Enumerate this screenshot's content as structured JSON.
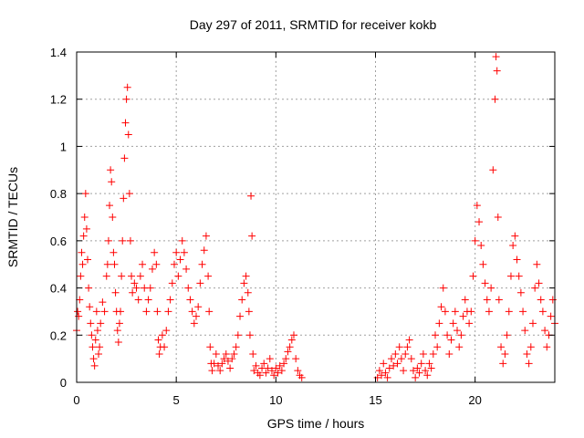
{
  "chart_data": {
    "type": "scatter",
    "title": "Day 297 of 2011, SRMTID for receiver kokb",
    "xlabel": "GPS time / hours",
    "ylabel": "SRMTID / TECUs",
    "xlim": [
      0,
      24
    ],
    "ylim": [
      0,
      1.4
    ],
    "xticks": [
      0,
      5,
      10,
      15,
      20
    ],
    "xtick_labels": [
      "0",
      "5",
      "10",
      "15",
      "20"
    ],
    "yticks": [
      0,
      0.2,
      0.4,
      0.6,
      0.8,
      1.0,
      1.2,
      1.4
    ],
    "ytick_labels": [
      "0",
      "0.2",
      "0.4",
      "0.6",
      "0.8",
      "1",
      "1.2",
      "1.4"
    ],
    "grid": true,
    "marker": "plus",
    "color": "#ff0000",
    "series": [
      {
        "name": "SRMTID",
        "points": [
          [
            0.0,
            0.22
          ],
          [
            0.05,
            0.3
          ],
          [
            0.1,
            0.28
          ],
          [
            0.15,
            0.35
          ],
          [
            0.2,
            0.45
          ],
          [
            0.25,
            0.55
          ],
          [
            0.3,
            0.5
          ],
          [
            0.35,
            0.62
          ],
          [
            0.4,
            0.7
          ],
          [
            0.45,
            0.8
          ],
          [
            0.5,
            0.65
          ],
          [
            0.55,
            0.52
          ],
          [
            0.6,
            0.4
          ],
          [
            0.65,
            0.32
          ],
          [
            0.7,
            0.25
          ],
          [
            0.75,
            0.2
          ],
          [
            0.8,
            0.15
          ],
          [
            0.85,
            0.1
          ],
          [
            0.9,
            0.07
          ],
          [
            0.95,
            0.18
          ],
          [
            1.0,
            0.3
          ],
          [
            1.05,
            0.22
          ],
          [
            1.1,
            0.12
          ],
          [
            1.15,
            0.15
          ],
          [
            1.2,
            0.25
          ],
          [
            1.3,
            0.34
          ],
          [
            1.4,
            0.3
          ],
          [
            1.5,
            0.45
          ],
          [
            1.55,
            0.5
          ],
          [
            1.6,
            0.6
          ],
          [
            1.65,
            0.75
          ],
          [
            1.7,
            0.9
          ],
          [
            1.75,
            0.85
          ],
          [
            1.8,
            0.7
          ],
          [
            1.85,
            0.55
          ],
          [
            1.9,
            0.5
          ],
          [
            1.95,
            0.38
          ],
          [
            2.0,
            0.3
          ],
          [
            2.05,
            0.22
          ],
          [
            2.1,
            0.17
          ],
          [
            2.15,
            0.25
          ],
          [
            2.2,
            0.3
          ],
          [
            2.25,
            0.45
          ],
          [
            2.3,
            0.6
          ],
          [
            2.35,
            0.78
          ],
          [
            2.4,
            0.95
          ],
          [
            2.45,
            1.1
          ],
          [
            2.5,
            1.2
          ],
          [
            2.55,
            1.25
          ],
          [
            2.6,
            1.05
          ],
          [
            2.65,
            0.8
          ],
          [
            2.7,
            0.6
          ],
          [
            2.75,
            0.45
          ],
          [
            2.8,
            0.38
          ],
          [
            2.9,
            0.42
          ],
          [
            3.0,
            0.4
          ],
          [
            3.1,
            0.35
          ],
          [
            3.2,
            0.45
          ],
          [
            3.3,
            0.5
          ],
          [
            3.4,
            0.4
          ],
          [
            3.5,
            0.3
          ],
          [
            3.6,
            0.35
          ],
          [
            3.7,
            0.4
          ],
          [
            3.8,
            0.48
          ],
          [
            3.9,
            0.55
          ],
          [
            4.0,
            0.5
          ],
          [
            4.05,
            0.3
          ],
          [
            4.1,
            0.18
          ],
          [
            4.15,
            0.12
          ],
          [
            4.2,
            0.15
          ],
          [
            4.3,
            0.2
          ],
          [
            4.4,
            0.15
          ],
          [
            4.5,
            0.22
          ],
          [
            4.6,
            0.3
          ],
          [
            4.7,
            0.35
          ],
          [
            4.8,
            0.42
          ],
          [
            4.9,
            0.5
          ],
          [
            5.0,
            0.55
          ],
          [
            5.1,
            0.45
          ],
          [
            5.2,
            0.52
          ],
          [
            5.3,
            0.6
          ],
          [
            5.4,
            0.55
          ],
          [
            5.5,
            0.48
          ],
          [
            5.6,
            0.4
          ],
          [
            5.7,
            0.35
          ],
          [
            5.8,
            0.3
          ],
          [
            5.9,
            0.25
          ],
          [
            6.0,
            0.28
          ],
          [
            6.1,
            0.32
          ],
          [
            6.2,
            0.42
          ],
          [
            6.3,
            0.5
          ],
          [
            6.4,
            0.56
          ],
          [
            6.5,
            0.62
          ],
          [
            6.6,
            0.45
          ],
          [
            6.65,
            0.3
          ],
          [
            6.7,
            0.15
          ],
          [
            6.75,
            0.08
          ],
          [
            6.8,
            0.05
          ],
          [
            6.9,
            0.08
          ],
          [
            7.0,
            0.12
          ],
          [
            7.1,
            0.07
          ],
          [
            7.2,
            0.05
          ],
          [
            7.3,
            0.08
          ],
          [
            7.4,
            0.1
          ],
          [
            7.5,
            0.12
          ],
          [
            7.6,
            0.09
          ],
          [
            7.7,
            0.06
          ],
          [
            7.8,
            0.1
          ],
          [
            7.9,
            0.12
          ],
          [
            8.0,
            0.15
          ],
          [
            8.1,
            0.2
          ],
          [
            8.2,
            0.28
          ],
          [
            8.3,
            0.35
          ],
          [
            8.4,
            0.42
          ],
          [
            8.5,
            0.45
          ],
          [
            8.6,
            0.38
          ],
          [
            8.65,
            0.3
          ],
          [
            8.7,
            0.2
          ],
          [
            8.75,
            0.79
          ],
          [
            8.8,
            0.62
          ],
          [
            8.85,
            0.12
          ],
          [
            8.9,
            0.05
          ],
          [
            9.0,
            0.07
          ],
          [
            9.1,
            0.04
          ],
          [
            9.2,
            0.03
          ],
          [
            9.3,
            0.06
          ],
          [
            9.4,
            0.08
          ],
          [
            9.5,
            0.04
          ],
          [
            9.6,
            0.06
          ],
          [
            9.7,
            0.1
          ],
          [
            9.8,
            0.05
          ],
          [
            9.9,
            0.03
          ],
          [
            10.0,
            0.06
          ],
          [
            10.1,
            0.04
          ],
          [
            10.2,
            0.07
          ],
          [
            10.3,
            0.05
          ],
          [
            10.4,
            0.08
          ],
          [
            10.5,
            0.1
          ],
          [
            10.6,
            0.13
          ],
          [
            10.7,
            0.15
          ],
          [
            10.8,
            0.18
          ],
          [
            10.9,
            0.2
          ],
          [
            11.0,
            0.1
          ],
          [
            11.1,
            0.05
          ],
          [
            11.2,
            0.03
          ],
          [
            11.3,
            0.02
          ],
          [
            15.1,
            0.02
          ],
          [
            15.2,
            0.05
          ],
          [
            15.3,
            0.03
          ],
          [
            15.4,
            0.08
          ],
          [
            15.5,
            0.04
          ],
          [
            15.6,
            0.02
          ],
          [
            15.7,
            0.06
          ],
          [
            15.8,
            0.1
          ],
          [
            15.9,
            0.07
          ],
          [
            16.0,
            0.12
          ],
          [
            16.1,
            0.08
          ],
          [
            16.2,
            0.15
          ],
          [
            16.3,
            0.1
          ],
          [
            16.4,
            0.05
          ],
          [
            16.5,
            0.12
          ],
          [
            16.6,
            0.15
          ],
          [
            16.7,
            0.18
          ],
          [
            16.8,
            0.1
          ],
          [
            16.9,
            0.05
          ],
          [
            17.0,
            0.02
          ],
          [
            17.1,
            0.06
          ],
          [
            17.2,
            0.04
          ],
          [
            17.3,
            0.08
          ],
          [
            17.4,
            0.12
          ],
          [
            17.5,
            0.05
          ],
          [
            17.6,
            0.03
          ],
          [
            17.7,
            0.08
          ],
          [
            17.8,
            0.06
          ],
          [
            17.9,
            0.12
          ],
          [
            18.0,
            0.2
          ],
          [
            18.1,
            0.15
          ],
          [
            18.2,
            0.25
          ],
          [
            18.3,
            0.32
          ],
          [
            18.4,
            0.4
          ],
          [
            18.5,
            0.3
          ],
          [
            18.6,
            0.2
          ],
          [
            18.7,
            0.12
          ],
          [
            18.8,
            0.18
          ],
          [
            18.9,
            0.25
          ],
          [
            19.0,
            0.3
          ],
          [
            19.1,
            0.22
          ],
          [
            19.2,
            0.15
          ],
          [
            19.3,
            0.2
          ],
          [
            19.4,
            0.28
          ],
          [
            19.5,
            0.35
          ],
          [
            19.6,
            0.3
          ],
          [
            19.7,
            0.25
          ],
          [
            19.8,
            0.3
          ],
          [
            19.9,
            0.45
          ],
          [
            20.0,
            0.6
          ],
          [
            20.1,
            0.75
          ],
          [
            20.2,
            0.68
          ],
          [
            20.3,
            0.58
          ],
          [
            20.4,
            0.5
          ],
          [
            20.5,
            0.42
          ],
          [
            20.6,
            0.35
          ],
          [
            20.7,
            0.3
          ],
          [
            20.8,
            0.4
          ],
          [
            20.9,
            0.9
          ],
          [
            21.0,
            1.2
          ],
          [
            21.05,
            1.38
          ],
          [
            21.1,
            1.32
          ],
          [
            21.15,
            0.7
          ],
          [
            21.2,
            0.35
          ],
          [
            21.3,
            0.15
          ],
          [
            21.4,
            0.08
          ],
          [
            21.5,
            0.12
          ],
          [
            21.6,
            0.2
          ],
          [
            21.7,
            0.3
          ],
          [
            21.8,
            0.45
          ],
          [
            21.9,
            0.58
          ],
          [
            22.0,
            0.62
          ],
          [
            22.1,
            0.52
          ],
          [
            22.2,
            0.45
          ],
          [
            22.3,
            0.38
          ],
          [
            22.4,
            0.3
          ],
          [
            22.5,
            0.22
          ],
          [
            22.6,
            0.12
          ],
          [
            22.7,
            0.08
          ],
          [
            22.8,
            0.15
          ],
          [
            22.9,
            0.25
          ],
          [
            23.0,
            0.4
          ],
          [
            23.1,
            0.5
          ],
          [
            23.2,
            0.42
          ],
          [
            23.3,
            0.35
          ],
          [
            23.4,
            0.3
          ],
          [
            23.5,
            0.22
          ],
          [
            23.6,
            0.15
          ],
          [
            23.7,
            0.2
          ],
          [
            23.8,
            0.28
          ],
          [
            23.9,
            0.35
          ],
          [
            24.0,
            0.25
          ]
        ]
      }
    ]
  }
}
